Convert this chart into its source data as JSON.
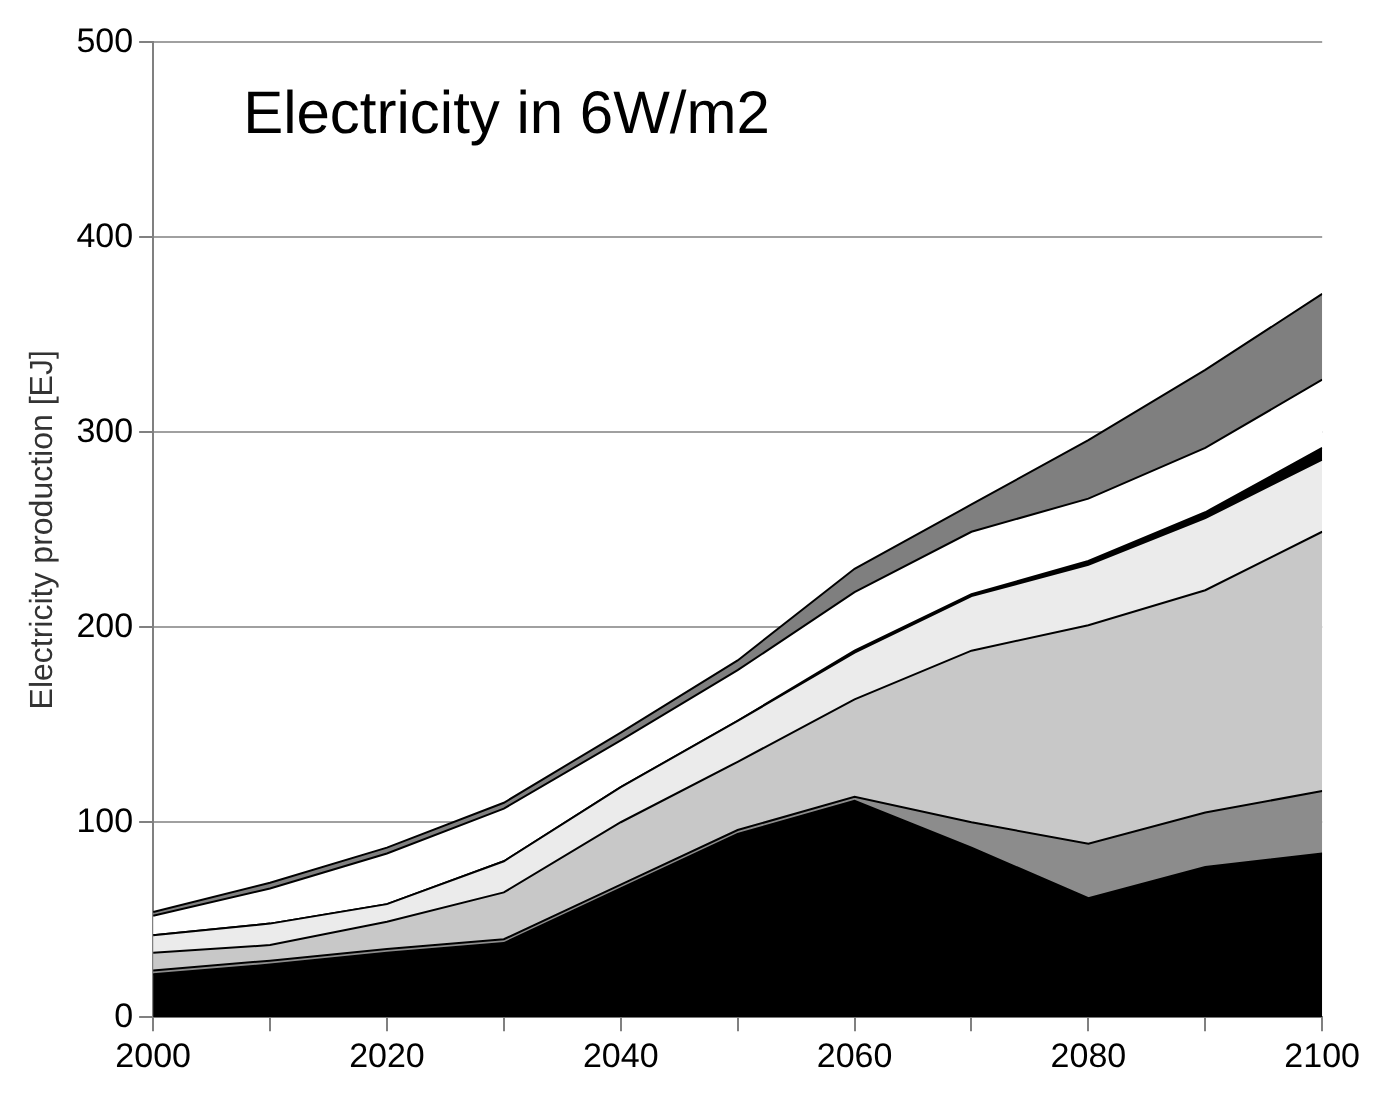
{
  "chart_data": {
    "type": "area",
    "title": "Electricity in 6W/m2",
    "ylabel": "Electricity production [EJ]",
    "stacked": true,
    "grid": "y",
    "legend": false,
    "x": [
      2000,
      2010,
      2020,
      2030,
      2040,
      2050,
      2060,
      2070,
      2080,
      2090,
      2100
    ],
    "xlim": [
      2000,
      2100
    ],
    "xticks": [
      2000,
      {
        "value": 2010,
        "label": null
      },
      2020,
      {
        "value": 2030,
        "label": null
      },
      2040,
      {
        "value": 2050,
        "label": null
      },
      2060,
      {
        "value": 2070,
        "label": null
      },
      2080,
      {
        "value": 2090,
        "label": null
      },
      2100
    ],
    "ylim": [
      0,
      500
    ],
    "yticks": [
      0,
      100,
      200,
      300,
      400,
      500
    ],
    "series": [
      {
        "color": "#000000",
        "values": [
          22,
          27,
          33,
          38,
          66,
          94,
          111,
          87,
          61,
          77,
          84
        ]
      },
      {
        "color": "#8c8c8c",
        "values": [
          2,
          2,
          2,
          2,
          2,
          2,
          2,
          13,
          28,
          28,
          32
        ]
      },
      {
        "color": "#c8c8c8",
        "values": [
          9,
          8,
          14,
          24,
          32,
          35,
          50,
          88,
          112,
          114,
          133
        ]
      },
      {
        "color": "#ebebeb",
        "values": [
          9,
          11,
          9,
          16,
          18,
          21,
          24,
          28,
          31,
          37,
          37
        ]
      },
      {
        "color": "#000000",
        "values": [
          0,
          0,
          0,
          0,
          0,
          0,
          1,
          1,
          2,
          3,
          6
        ]
      },
      {
        "color": "#ffffff",
        "values": [
          10,
          18,
          26,
          27,
          24,
          26,
          30,
          32,
          32,
          33,
          35
        ]
      },
      {
        "color": "#7f7f7f",
        "values": [
          2,
          3,
          3,
          3,
          4,
          5,
          12,
          14,
          30,
          40,
          44
        ]
      }
    ]
  }
}
